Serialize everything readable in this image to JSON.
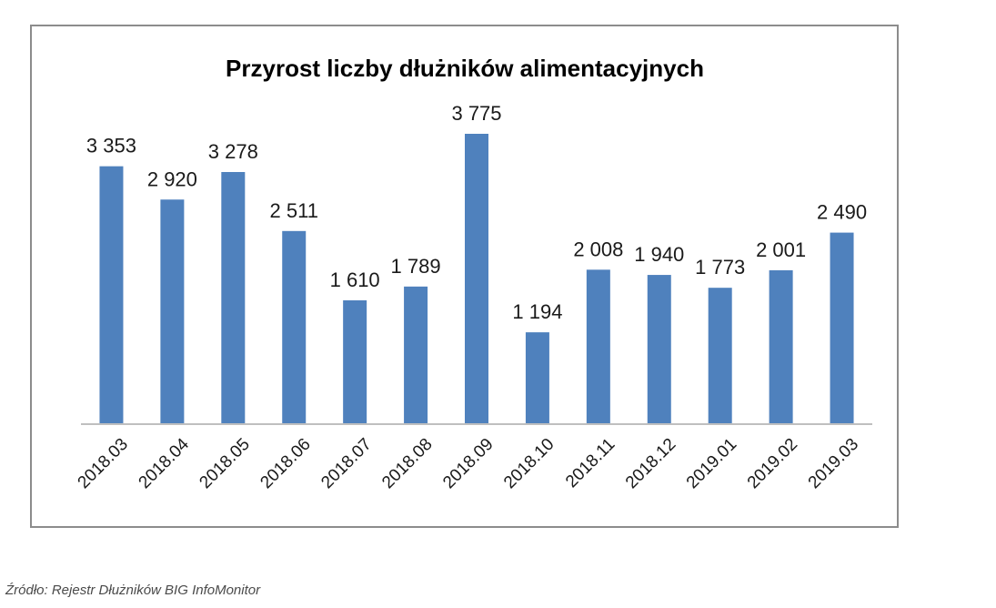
{
  "chart_data": {
    "type": "bar",
    "title": "Przyrost liczby dłużników alimentacyjnych",
    "categories": [
      "2018.03",
      "2018.04",
      "2018.05",
      "2018.06",
      "2018.07",
      "2018.08",
      "2018.09",
      "2018.10",
      "2018.11",
      "2018.12",
      "2019.01",
      "2019.02",
      "2019.03"
    ],
    "values": [
      3353,
      2920,
      3278,
      2511,
      1610,
      1789,
      3775,
      1194,
      2008,
      1940,
      1773,
      2001,
      2490
    ],
    "value_labels": [
      "3 353",
      "2 920",
      "3 278",
      "2 511",
      "1 610",
      "1 789",
      "3 775",
      "1 194",
      "2 008",
      "1 940",
      "1 773",
      "2 001",
      "2 490"
    ],
    "ylim": [
      0,
      3775
    ],
    "grid": false,
    "legend": "none",
    "xlabel": "",
    "ylabel": "",
    "bar_color": "#4f81bd",
    "axis_color": "#bfbfbf"
  },
  "source": "Źródło: Rejestr Dłużników BIG InfoMonitor"
}
